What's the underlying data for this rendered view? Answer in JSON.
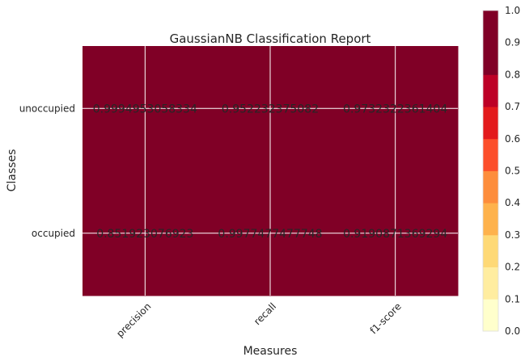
{
  "chart_data": {
    "type": "heatmap",
    "title": "GaussianNB Classification Report",
    "xlabel": "Measures",
    "ylabel": "Classes",
    "columns": [
      "precision",
      "recall",
      "f1-score"
    ],
    "rows": [
      "unoccupied",
      "occupied"
    ],
    "values": [
      [
        0.9994953058334,
        0.952232375082,
        0.9732322361404
      ],
      [
        0.851923076923,
        0.9977477477748,
        0.9190871369294
      ]
    ],
    "cell_labels": [
      [
        "0.9994953058334",
        "0.952232375082",
        "0.9732322361404"
      ],
      [
        "0.851923076923",
        "0.9977477477748",
        "0.9190871369294"
      ]
    ],
    "colorbar": {
      "ticks": [
        "0.0",
        "0.1",
        "0.2",
        "0.3",
        "0.4",
        "0.5",
        "0.6",
        "0.7",
        "0.8",
        "0.9",
        "1.0"
      ],
      "colors": [
        "#ffffcc",
        "#ffeda0",
        "#fed976",
        "#feb24c",
        "#fd8d3c",
        "#fc4e2a",
        "#e31a1c",
        "#bd0026",
        "#800026",
        "#800026"
      ],
      "range": [
        0,
        1
      ]
    },
    "colors": {
      "grid": "#ffffff",
      "label_text": "#262626"
    }
  }
}
